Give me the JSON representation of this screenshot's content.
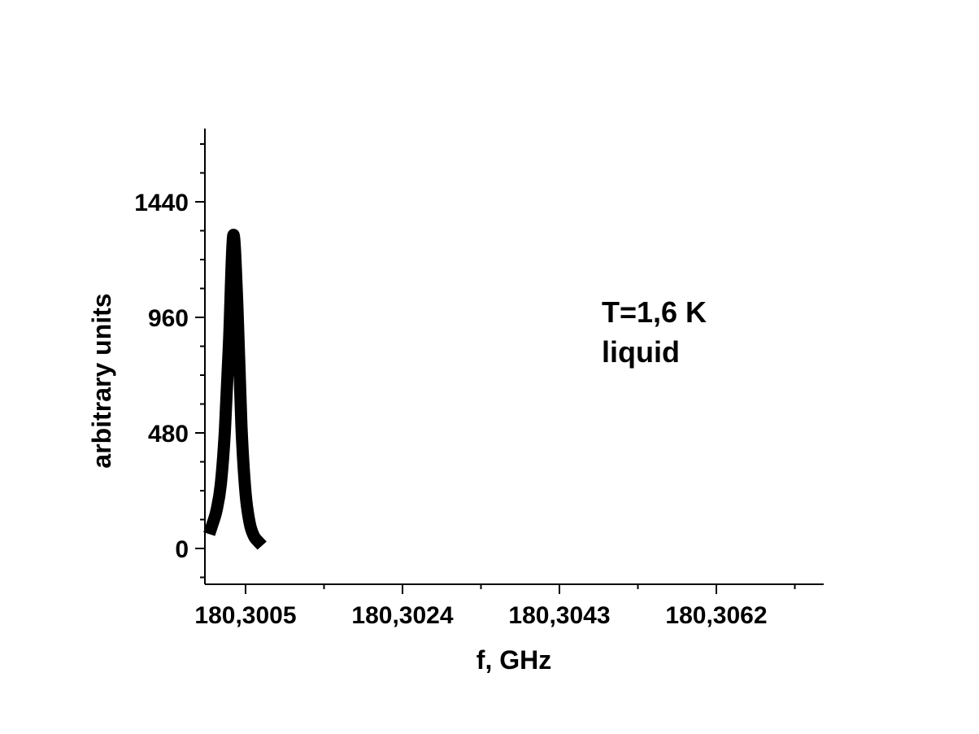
{
  "chart_data": {
    "type": "line",
    "title": "",
    "xlabel": "f, GHz",
    "ylabel": "arbitrary units",
    "xlim": [
      180.30006,
      180.30081
    ],
    "ylim": [
      -150,
      1720
    ],
    "x_ticks": [
      {
        "value": 180.3005,
        "label": "180,3005"
      },
      {
        "value": 180.3024,
        "label": "180,3024"
      },
      {
        "value": 180.3043,
        "label": "180,3043"
      },
      {
        "value": 180.3062,
        "label": "180,3062"
      }
    ],
    "y_ticks": [
      {
        "value": 0,
        "label": "0"
      },
      {
        "value": 480,
        "label": "480"
      },
      {
        "value": 960,
        "label": "960"
      },
      {
        "value": 1440,
        "label": "1440"
      }
    ],
    "series": [
      {
        "line_color": "#000000",
        "x": [
          180.30006,
          180.3001,
          180.30015,
          180.3002,
          180.30025,
          180.3003,
          180.30035,
          180.3004,
          180.30045,
          180.3005,
          180.30055,
          180.3006,
          180.30065,
          180.3007
        ],
        "y": [
          60,
          102,
          160,
          265,
          490,
          860,
          1300,
          1020,
          510,
          230,
          105,
          52,
          30,
          12
        ]
      }
    ],
    "annotations": [
      "T=1,6 K",
      "liquid"
    ],
    "grid": false,
    "legend": "none"
  }
}
